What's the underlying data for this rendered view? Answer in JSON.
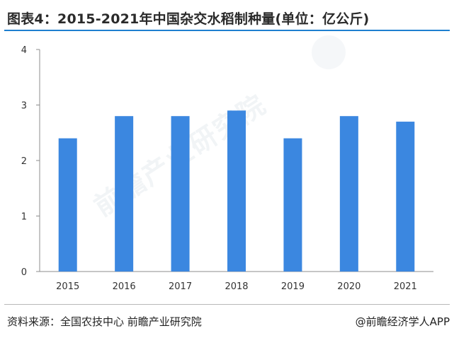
{
  "title": "图表4：2015-2021年中国杂交水稻制种量(单位：亿公斤)",
  "source": "资料来源：全国农技中心 前瞻产业研究院",
  "credit": "@前瞻经济学人APP",
  "watermark": "前瞻产业研究院",
  "colors": {
    "bar": "#3b87e0",
    "axis": "#8c8c8c",
    "accent": "#1e7fd0"
  },
  "chart_data": {
    "type": "bar",
    "categories": [
      "2015",
      "2016",
      "2017",
      "2018",
      "2019",
      "2020",
      "2021"
    ],
    "values": [
      2.4,
      2.8,
      2.8,
      2.9,
      2.4,
      2.8,
      2.7
    ],
    "ylim": [
      0,
      4
    ],
    "yticks": [
      0,
      1,
      2,
      3,
      4
    ],
    "grid": false,
    "legend": false
  }
}
